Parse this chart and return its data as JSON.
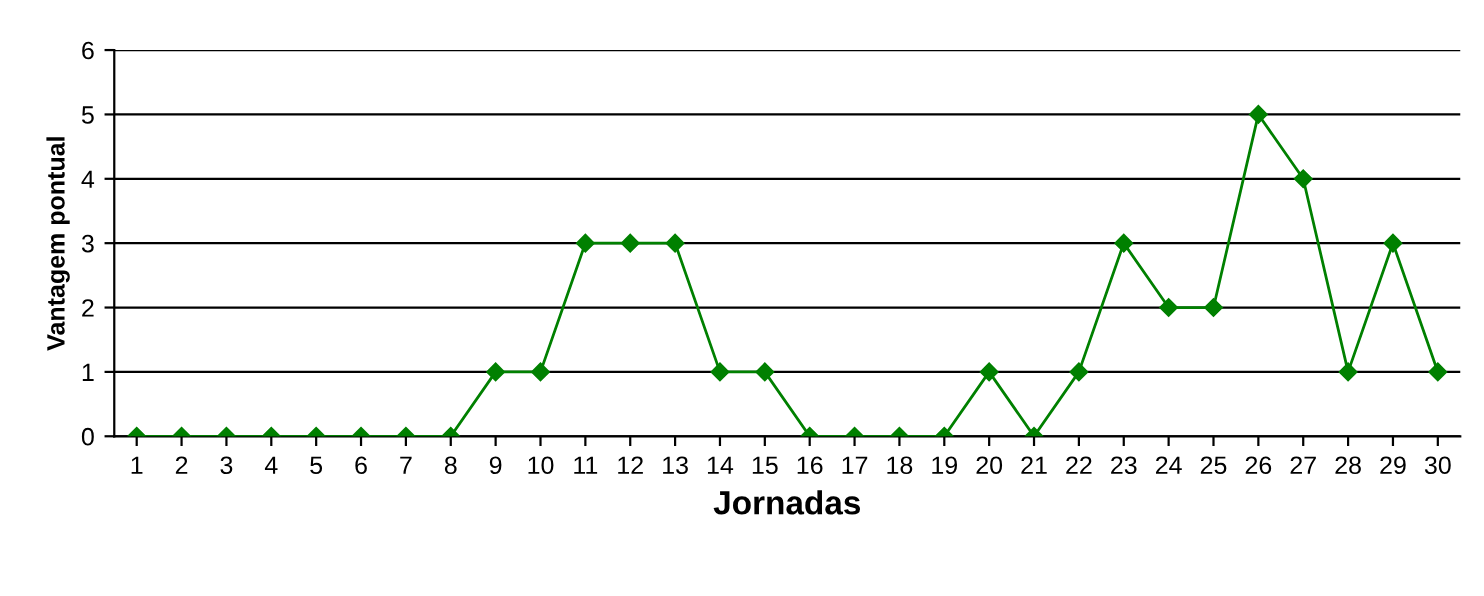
{
  "chart_data": {
    "type": "line",
    "xlabel": "Jornadas",
    "ylabel": "Vantagem pontual",
    "categories": [
      "1",
      "2",
      "3",
      "4",
      "5",
      "6",
      "7",
      "8",
      "9",
      "10",
      "11",
      "12",
      "13",
      "14",
      "15",
      "16",
      "17",
      "18",
      "19",
      "20",
      "21",
      "22",
      "23",
      "24",
      "25",
      "26",
      "27",
      "28",
      "29",
      "30"
    ],
    "series": [
      {
        "color": "#008000",
        "values": [
          0,
          0,
          0,
          0,
          0,
          0,
          0,
          0,
          1,
          1,
          3,
          3,
          3,
          1,
          1,
          0,
          0,
          0,
          0,
          1,
          0,
          1,
          3,
          2,
          2,
          5,
          4,
          1,
          3,
          1
        ]
      }
    ],
    "ylim": [
      0,
      6
    ],
    "yticks": [
      0,
      1,
      2,
      3,
      4,
      5,
      6
    ],
    "grid": "y",
    "marker": "diamond",
    "line_style": "solid"
  }
}
